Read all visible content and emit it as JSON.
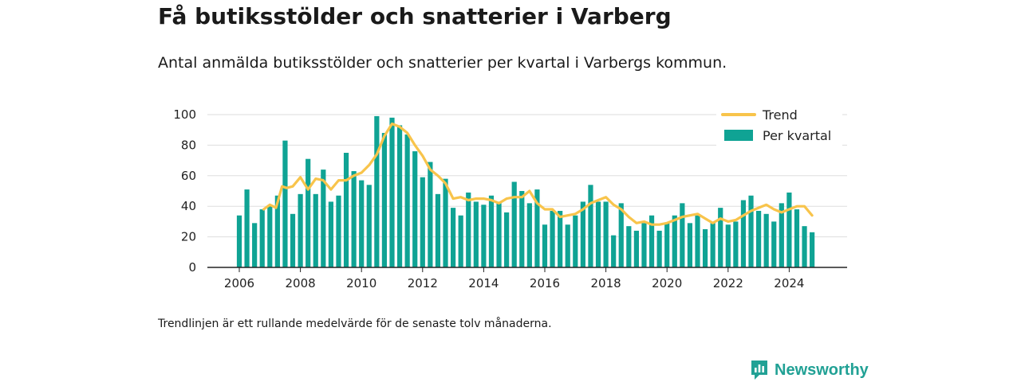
{
  "header": {
    "title": "Få butiksstölder och snatterier i Varberg",
    "subtitle": "Antal anmälda butiksstölder och snatterier per kvartal i Varbergs kommun."
  },
  "footnote": "Trendlinjen är ett rullande medelvärde för de senaste tolv månaderna.",
  "brand": {
    "name": "Newsworthy",
    "icon": "newsworthy-logo-icon",
    "color": "#21a195"
  },
  "colors": {
    "bars": "#0fa394",
    "trend": "#f8c44b",
    "axis": "#222222",
    "grid": "#dddddd"
  },
  "chart_data": {
    "type": "bar",
    "title": "Få butiksstölder och snatterier i Varberg",
    "subtitle": "Antal anmälda butiksstölder och snatterier per kvartal i Varbergs kommun.",
    "ylim": [
      0,
      100
    ],
    "yticks": [
      0,
      20,
      40,
      60,
      80,
      100
    ],
    "xlim": [
      2005.25,
      2025.2
    ],
    "xticks": [
      2006,
      2008,
      2010,
      2012,
      2014,
      2016,
      2018,
      2020,
      2022,
      2024
    ],
    "grid": true,
    "legend": "top-right",
    "start": "2006-Q1",
    "quarters": [
      "2006-Q1",
      "2006-Q2",
      "2006-Q3",
      "2006-Q4",
      "2007-Q1",
      "2007-Q2",
      "2007-Q3",
      "2007-Q4",
      "2008-Q1",
      "2008-Q2",
      "2008-Q3",
      "2008-Q4",
      "2009-Q1",
      "2009-Q2",
      "2009-Q3",
      "2009-Q4",
      "2010-Q1",
      "2010-Q2",
      "2010-Q3",
      "2010-Q4",
      "2011-Q1",
      "2011-Q2",
      "2011-Q3",
      "2011-Q4",
      "2012-Q1",
      "2012-Q2",
      "2012-Q3",
      "2012-Q4",
      "2013-Q1",
      "2013-Q2",
      "2013-Q3",
      "2013-Q4",
      "2014-Q1",
      "2014-Q2",
      "2014-Q3",
      "2014-Q4",
      "2015-Q1",
      "2015-Q2",
      "2015-Q3",
      "2015-Q4",
      "2016-Q1",
      "2016-Q2",
      "2016-Q3",
      "2016-Q4",
      "2017-Q1",
      "2017-Q2",
      "2017-Q3",
      "2017-Q4",
      "2018-Q1",
      "2018-Q2",
      "2018-Q3",
      "2018-Q4",
      "2019-Q1",
      "2019-Q2",
      "2019-Q3",
      "2019-Q4",
      "2020-Q1",
      "2020-Q2",
      "2020-Q3",
      "2020-Q4",
      "2021-Q1",
      "2021-Q2",
      "2021-Q3",
      "2021-Q4",
      "2022-Q1",
      "2022-Q2",
      "2022-Q3",
      "2022-Q4",
      "2023-Q1",
      "2023-Q2",
      "2023-Q3",
      "2023-Q4",
      "2024-Q1",
      "2024-Q2",
      "2024-Q3",
      "2024-Q4"
    ],
    "series": [
      {
        "name": "Per kvartal",
        "type": "bar",
        "values": [
          34,
          51,
          29,
          38,
          40,
          47,
          83,
          35,
          48,
          71,
          48,
          64,
          43,
          47,
          75,
          63,
          57,
          54,
          99,
          88,
          98,
          93,
          87,
          76,
          59,
          69,
          48,
          58,
          39,
          34,
          49,
          43,
          41,
          47,
          43,
          36,
          56,
          50,
          42,
          51,
          28,
          37,
          37,
          28,
          34,
          43,
          54,
          43,
          43,
          21,
          42,
          27,
          24,
          29,
          34,
          24,
          29,
          34,
          42,
          29,
          34,
          25,
          29,
          39,
          28,
          30,
          44,
          47,
          37,
          35,
          30,
          42,
          49,
          38,
          27,
          23
        ]
      },
      {
        "name": "Trend",
        "type": "line",
        "x": [
          2006.8,
          2007.0,
          2007.2,
          2007.4,
          2007.55,
          2007.75,
          2008.0,
          2008.25,
          2008.5,
          2008.75,
          2009.0,
          2009.25,
          2009.5,
          2009.75,
          2010.0,
          2010.25,
          2010.5,
          2010.75,
          2011.0,
          2011.25,
          2011.5,
          2011.75,
          2012.0,
          2012.25,
          2012.5,
          2012.75,
          2013.0,
          2013.25,
          2013.5,
          2013.75,
          2014.0,
          2014.25,
          2014.5,
          2014.75,
          2015.0,
          2015.25,
          2015.5,
          2015.75,
          2016.0,
          2016.25,
          2016.5,
          2016.75,
          2017.0,
          2017.25,
          2017.5,
          2017.75,
          2018.0,
          2018.25,
          2018.5,
          2018.75,
          2019.0,
          2019.25,
          2019.5,
          2019.75,
          2020.0,
          2020.25,
          2020.5,
          2020.75,
          2021.0,
          2021.25,
          2021.5,
          2021.75,
          2022.0,
          2022.25,
          2022.5,
          2022.75,
          2023.0,
          2023.25,
          2023.5,
          2023.75,
          2024.0,
          2024.25,
          2024.5,
          2024.75
        ],
        "values": [
          38,
          41,
          39,
          53,
          52,
          53,
          59,
          51,
          58,
          57,
          51,
          57,
          57,
          60,
          62,
          67,
          74,
          86,
          94,
          92,
          88,
          80,
          73,
          64,
          60,
          55,
          45,
          46,
          44,
          45,
          45,
          44,
          42,
          45,
          46,
          46,
          50,
          42,
          38,
          38,
          33,
          34,
          35,
          38,
          42,
          44,
          46,
          41,
          38,
          33,
          29,
          30,
          28,
          28,
          29,
          31,
          33,
          34,
          35,
          32,
          29,
          32,
          30,
          31,
          34,
          37,
          39,
          41,
          38,
          36,
          38,
          40,
          40,
          34
        ]
      }
    ]
  }
}
